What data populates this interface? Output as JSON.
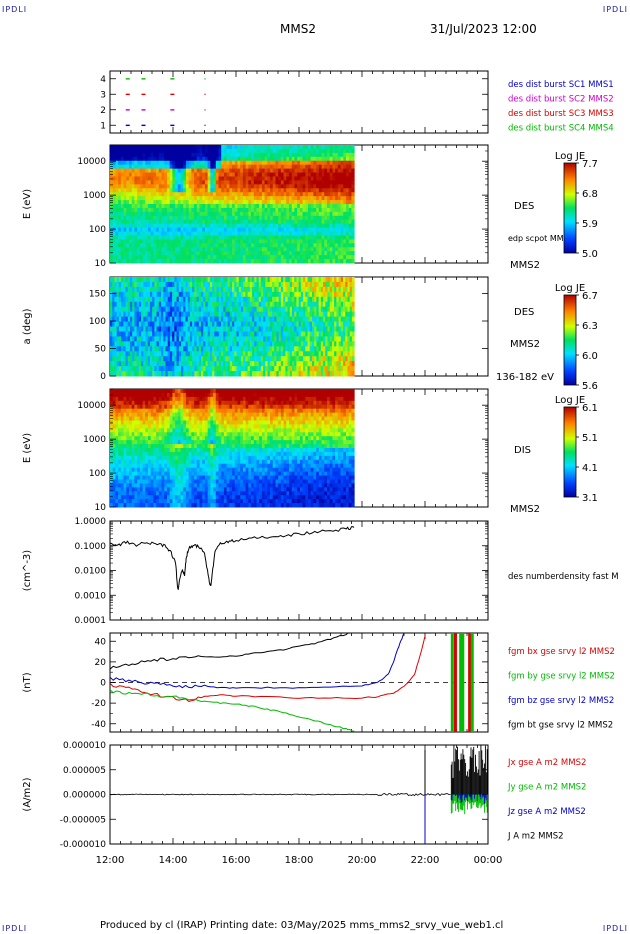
{
  "corners": {
    "tl": "IPDLI",
    "tr": "IPDLI",
    "bl": "IPDLI",
    "br": "IPDLI"
  },
  "header": {
    "title": "MMS2",
    "datetime": "31/Jul/2023 12:00"
  },
  "footer": {
    "text": "Produced by cl (IRAP)   Printing date: 03/May/2025   mms_mms2_srvy_vue_web1.cl"
  },
  "colors": {
    "mms1": "#0000cc",
    "mms2": "#cc00cc",
    "mms3": "#dd0000",
    "mms4": "#00bb00",
    "black": "#000000"
  },
  "chart_data": [
    {
      "type": "scatter",
      "panel": "burst-availability",
      "ylim": [
        0.5,
        4.5
      ],
      "y_ticks": [
        "1",
        "2",
        "3",
        "4"
      ],
      "legend": [
        "des dist burst SC1 MMS1",
        "des dist burst SC2 MMS2",
        "des dist burst SC3 MMS3",
        "des dist burst SC4 MMS4"
      ],
      "legend_colors": [
        "#0000cc",
        "#cc00cc",
        "#dd0000",
        "#00bb00"
      ],
      "series": [
        {
          "name": "des dist burst SC1 MMS1",
          "sc": 1,
          "x": [
            "12:30",
            "13:00",
            "13:55",
            "15:00"
          ]
        },
        {
          "name": "des dist burst SC2 MMS2",
          "sc": 2,
          "x": [
            "12:30",
            "13:00",
            "13:55",
            "15:00"
          ]
        },
        {
          "name": "des dist burst SC3 MMS3",
          "sc": 3,
          "x": [
            "12:30",
            "13:00",
            "13:55",
            "15:00"
          ]
        },
        {
          "name": "des dist burst SC4 MMS4",
          "sc": 4,
          "x": [
            "12:30",
            "13:00",
            "13:55",
            "15:00"
          ]
        }
      ]
    },
    {
      "type": "heatmap",
      "panel": "des-energy-spectrogram",
      "ylabel": "E (eV)",
      "y_scale": "log",
      "ylim": [
        10,
        30000
      ],
      "y_ticks": [
        "10",
        "100",
        "1000",
        "10000"
      ],
      "data_end": "19:45",
      "labels": [
        "DES",
        "edp scpot MMS2",
        "MMS2"
      ],
      "colorbar": {
        "title": "Log JE",
        "ticks": [
          "7.7",
          "6.8",
          "5.9",
          "5.0"
        ],
        "range": [
          5.0,
          7.7
        ]
      }
    },
    {
      "type": "heatmap",
      "panel": "des-pitch-angle",
      "ylabel": "a (deg)",
      "ylim": [
        0,
        180
      ],
      "y_ticks": [
        "0",
        "50",
        "100",
        "150"
      ],
      "data_end": "19:45",
      "labels": [
        "DES",
        "MMS2",
        "136-182 eV"
      ],
      "colorbar": {
        "title": "Log JE",
        "ticks": [
          "6.7",
          "6.3",
          "6.0",
          "5.6"
        ],
        "range": [
          5.6,
          6.7
        ]
      }
    },
    {
      "type": "heatmap",
      "panel": "dis-energy-spectrogram",
      "ylabel": "E (eV)",
      "y_scale": "log",
      "ylim": [
        10,
        30000
      ],
      "y_ticks": [
        "10",
        "100",
        "1000",
        "10000"
      ],
      "data_end": "19:45",
      "labels": [
        "DIS",
        "MMS2"
      ],
      "colorbar": {
        "title": "Log JE",
        "ticks": [
          "6.1",
          "5.1",
          "4.1",
          "3.1"
        ],
        "range": [
          3.1,
          6.1
        ]
      }
    },
    {
      "type": "line",
      "panel": "electron-density",
      "ylabel": "(cm^-3)",
      "y_scale": "log",
      "ylim": [
        0.0001,
        1.0
      ],
      "y_ticks": [
        "1.0000",
        "0.1000",
        "0.0100",
        "0.0010",
        "0.0001"
      ],
      "series": [
        {
          "name": "des numberdensity fast M",
          "color": "#000000",
          "x": [
            "12:00",
            "12:15",
            "12:30",
            "12:50",
            "13:10",
            "13:30",
            "13:45",
            "13:55",
            "14:05",
            "14:08",
            "14:10",
            "14:12",
            "14:18",
            "14:22",
            "14:25",
            "14:30",
            "14:40",
            "14:50",
            "15:00",
            "15:05",
            "15:10",
            "15:12",
            "15:15",
            "15:20",
            "15:30",
            "15:45",
            "16:00",
            "16:30",
            "17:00",
            "17:30",
            "18:00",
            "18:30",
            "19:00",
            "19:30",
            "19:45"
          ],
          "y": [
            0.12,
            0.1,
            0.14,
            0.11,
            0.13,
            0.12,
            0.1,
            0.06,
            0.02,
            0.003,
            0.0015,
            0.004,
            0.012,
            0.006,
            0.03,
            0.08,
            0.1,
            0.09,
            0.05,
            0.012,
            0.003,
            0.0025,
            0.008,
            0.06,
            0.12,
            0.15,
            0.16,
            0.2,
            0.23,
            0.26,
            0.3,
            0.35,
            0.4,
            0.48,
            0.55
          ]
        }
      ]
    },
    {
      "type": "line",
      "panel": "fgm-magnetic-field",
      "ylabel": "(nT)",
      "ylim": [
        -48,
        48
      ],
      "y_ticks": [
        "40",
        "20",
        "0",
        "-20",
        "-40"
      ],
      "zero_line": "dashed",
      "series": [
        {
          "name": "fgm bx gse srvy l2 MMS2",
          "color": "#dd0000",
          "x": [
            "12:00",
            "12:30",
            "13:00",
            "13:30",
            "14:00",
            "14:30",
            "15:00",
            "15:30",
            "16:00",
            "17:00",
            "18:00",
            "19:00",
            "20:00",
            "20:30",
            "21:00",
            "21:20",
            "21:40",
            "21:50",
            "22:00"
          ],
          "y": [
            -2,
            -5,
            -9,
            -12,
            -15,
            -17,
            -14,
            -12,
            -13,
            -14,
            -15,
            -15,
            -15,
            -14,
            -10,
            -4,
            8,
            25,
            45
          ]
        },
        {
          "name": "fgm by gse srvy l2 MMS2",
          "color": "#00bb00",
          "x": [
            "12:00",
            "12:30",
            "13:00",
            "13:30",
            "14:00",
            "14:30",
            "15:00",
            "15:30",
            "16:00",
            "16:30",
            "17:00",
            "17:30",
            "18:00",
            "18:30",
            "19:00",
            "19:30",
            "19:45"
          ],
          "y": [
            -8,
            -10,
            -11,
            -13,
            -14,
            -16,
            -18,
            -20,
            -21,
            -23,
            -26,
            -29,
            -33,
            -37,
            -41,
            -45,
            -47
          ]
        },
        {
          "name": "fgm bz gse srvy l2 MMS2",
          "color": "#0000cc",
          "x": [
            "12:00",
            "12:30",
            "13:00",
            "13:30",
            "14:00",
            "14:30",
            "15:00",
            "15:30",
            "16:00",
            "17:00",
            "18:00",
            "19:00",
            "20:00",
            "20:30",
            "20:50",
            "21:00",
            "21:10",
            "21:20"
          ],
          "y": [
            4,
            2,
            0,
            -1,
            -3,
            -4,
            -3,
            -5,
            -5,
            -5,
            -5,
            -4,
            -3,
            0,
            8,
            20,
            35,
            48
          ]
        },
        {
          "name": "fgm bt gse srvy l2 MMS2",
          "color": "#000000",
          "x": [
            "12:00",
            "12:30",
            "13:00",
            "13:30",
            "14:00",
            "14:30",
            "15:00",
            "15:30",
            "16:00",
            "16:30",
            "17:00",
            "17:30",
            "18:00",
            "18:30",
            "19:00",
            "19:30",
            "19:45"
          ],
          "y": [
            14,
            17,
            20,
            22,
            23,
            24,
            25,
            25,
            26,
            28,
            30,
            32,
            35,
            38,
            42,
            47,
            49
          ]
        }
      ],
      "vertical_bands": [
        {
          "x": "22:52",
          "color": "#00bb00"
        },
        {
          "x": "22:58",
          "color": "#dd0000"
        },
        {
          "x": "23:08",
          "color": "#00bb00"
        },
        {
          "x": "23:12",
          "color": "#00bb00"
        },
        {
          "x": "23:25",
          "color": "#dd0000"
        },
        {
          "x": "23:30",
          "color": "#00bb00"
        }
      ]
    },
    {
      "type": "line",
      "panel": "current-density",
      "ylabel": "(A/m2)",
      "ylim": [
        -1e-05,
        1e-05
      ],
      "y_ticks": [
        "0.000010",
        "0.000005",
        "0.000000",
        "-0.000005",
        "-0.000010"
      ],
      "x_ticks": [
        "12:00",
        "14:00",
        "16:00",
        "18:00",
        "20:00",
        "22:00",
        "00:00"
      ],
      "series": [
        {
          "name": "Jx gse A m2 MMS2",
          "color": "#dd0000"
        },
        {
          "name": "Jy gse A m2 MMS2",
          "color": "#00bb00"
        },
        {
          "name": "Jz gse A m2 MMS2",
          "color": "#0000cc"
        },
        {
          "name": "J A m2 MMS2",
          "color": "#000000"
        }
      ],
      "features": [
        {
          "x": "22:00",
          "jmin": -1e-05,
          "jmax": 9e-06
        },
        {
          "x_start": "22:50",
          "x_end": "24:00",
          "jmin": -4e-06,
          "jmax": 1e-05
        }
      ]
    }
  ]
}
